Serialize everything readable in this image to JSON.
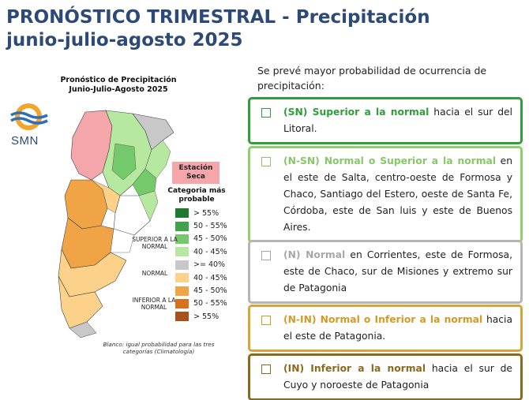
{
  "header": {
    "title_line1": "PRONÓSTICO TRIMESTRAL - Precipitación",
    "title_line2": "junio-julio-agosto 2025"
  },
  "intro": "Se prevé mayor probabilidad de ocurrencia de precipitación:",
  "map": {
    "title_line1": "Pronóstico de Precipitación",
    "title_line2": "Junio-Julio-Agosto 2025",
    "logo_text": "SMN",
    "estacion_seca": "Estación Seca",
    "categoria_title": "Categoria más probable",
    "legend": [
      {
        "label": "> 55%",
        "color": "#1e7a32"
      },
      {
        "label": "50 - 55%",
        "color": "#3fa34d"
      },
      {
        "label": "45 - 50%",
        "color": "#74c96a"
      },
      {
        "label": "40 - 45%",
        "color": "#b7e8a0"
      },
      {
        "label": ">= 40%",
        "color": "#c8c8c8"
      },
      {
        "label": "40 - 45%",
        "color": "#fcd28a"
      },
      {
        "label": "45 - 50%",
        "color": "#f0a446"
      },
      {
        "label": "50 - 55%",
        "color": "#d9701c"
      },
      {
        "label": "> 55%",
        "color": "#a8521a"
      }
    ],
    "group_superior": "SUPERIOR A LA NORMAL",
    "group_normal": "NORMAL",
    "group_inferior": "INFERIOR A LA NORMAL",
    "footnote": "Blanco: igual probabilidad para las tres categorías (Climatología)"
  },
  "boxes": [
    {
      "highlight": "(SN) Superior a la normal",
      "text": "  hacia el sur del Litoral.",
      "border": "#2f9e3a",
      "hl_color": "#2f9e3a"
    },
    {
      "highlight": "(N-SN) Normal o Superior a la normal",
      "text": " en el este de Salta, centro-oeste de Formosa y Chaco, Santiago del Estero, oeste de Santa Fe, Córdoba, este de San luis y este de Buenos Aires.",
      "border": "#8fd06c",
      "hl_color": "#86c866"
    },
    {
      "highlight": "(N) Normal",
      "text": " en Corrientes, este de Formosa, este de Chaco, sur de Misiones y extremo sur de Patagonia",
      "border": "#b5b5b5",
      "hl_color": "#a8a8a8"
    },
    {
      "highlight": "(N-IN) Normal o Inferior a la normal",
      "text": " hacia el este de Patagonia.",
      "border": "#d4a537",
      "hl_color": "#d39a25"
    },
    {
      "highlight": "(IN) Inferior a la normal",
      "text": " hacia el sur de Cuyo y noroeste de Patagonia",
      "border": "#8a6a1e",
      "hl_color": "#8a6a1e"
    }
  ]
}
